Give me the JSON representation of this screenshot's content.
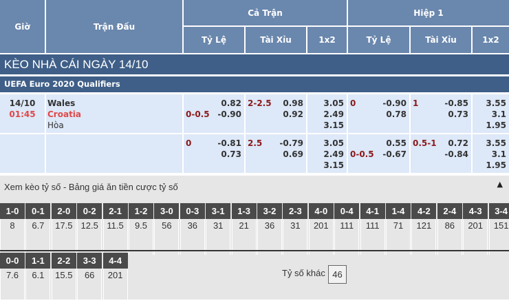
{
  "header": {
    "time": "Giờ",
    "match": "Trận Đấu",
    "full": "Cả Trận",
    "half": "Hiệp 1",
    "hdp": "Tỷ Lệ",
    "ou": "Tài Xỉu",
    "x12": "1x2"
  },
  "title": "KÈO NHÀ CÁI NGÀY 14/10",
  "league": "UEFA Euro 2020 Qualifiers",
  "match": {
    "date": "14/10",
    "time": "01:45",
    "home": "Wales",
    "away": "Croatia",
    "draw": "Hòa"
  },
  "rows": [
    {
      "ft_hdp_line": "0-0.5",
      "ft_hdp_line_pos": "away",
      "ft_hdp": [
        "0.82",
        "-0.90"
      ],
      "ft_ou_line": "2-2.5",
      "ft_ou": [
        "0.98",
        "0.92"
      ],
      "ft_1x2": [
        "3.05",
        "2.49",
        "3.15"
      ],
      "h1_hdp_line": "0",
      "h1_hdp_line_pos": "home",
      "h1_hdp": [
        "-0.90",
        "0.78"
      ],
      "h1_ou_line": "1",
      "h1_ou": [
        "-0.85",
        "0.73"
      ],
      "h1_1x2": [
        "3.55",
        "3.1",
        "1.95"
      ]
    },
    {
      "ft_hdp_line": "0",
      "ft_hdp_line_pos": "home",
      "ft_hdp": [
        "-0.81",
        "0.73"
      ],
      "ft_ou_line": "2.5",
      "ft_ou": [
        "-0.79",
        "0.69"
      ],
      "ft_1x2": [
        "3.05",
        "2.49",
        "3.15"
      ],
      "h1_hdp_line": "0-0.5",
      "h1_hdp_line_pos": "away",
      "h1_hdp": [
        "0.55",
        "-0.67"
      ],
      "h1_ou_line": "0.5-1",
      "h1_ou": [
        "0.72",
        "-0.84"
      ],
      "h1_1x2": [
        "3.55",
        "3.1",
        "1.95"
      ]
    }
  ],
  "correct_score": {
    "title": "Xem kèo tỷ số - Bảng giá ăn tiền cược tỷ số",
    "collapse_icon": "triangle-up-icon",
    "row1": [
      [
        "1-0",
        "8"
      ],
      [
        "0-1",
        "6.7"
      ],
      [
        "2-0",
        "17.5"
      ],
      [
        "0-2",
        "12.5"
      ],
      [
        "2-1",
        "11.5"
      ],
      [
        "1-2",
        "9.5"
      ],
      [
        "3-0",
        "56"
      ],
      [
        "0-3",
        "36"
      ],
      [
        "3-1",
        "31"
      ],
      [
        "1-3",
        "21"
      ],
      [
        "3-2",
        "36"
      ],
      [
        "2-3",
        "31"
      ],
      [
        "4-0",
        "201"
      ],
      [
        "0-4",
        "111"
      ],
      [
        "4-1",
        "111"
      ],
      [
        "1-4",
        "71"
      ],
      [
        "4-2",
        "121"
      ],
      [
        "2-4",
        "86"
      ],
      [
        "4-3",
        "201"
      ],
      [
        "3-4",
        "151"
      ]
    ],
    "row2": [
      [
        "0-0",
        "7.6"
      ],
      [
        "1-1",
        "6.1"
      ],
      [
        "2-2",
        "15.5"
      ],
      [
        "3-3",
        "66"
      ],
      [
        "4-4",
        "201"
      ]
    ],
    "other_label": "Tỷ số khác",
    "other_value": "46"
  }
}
